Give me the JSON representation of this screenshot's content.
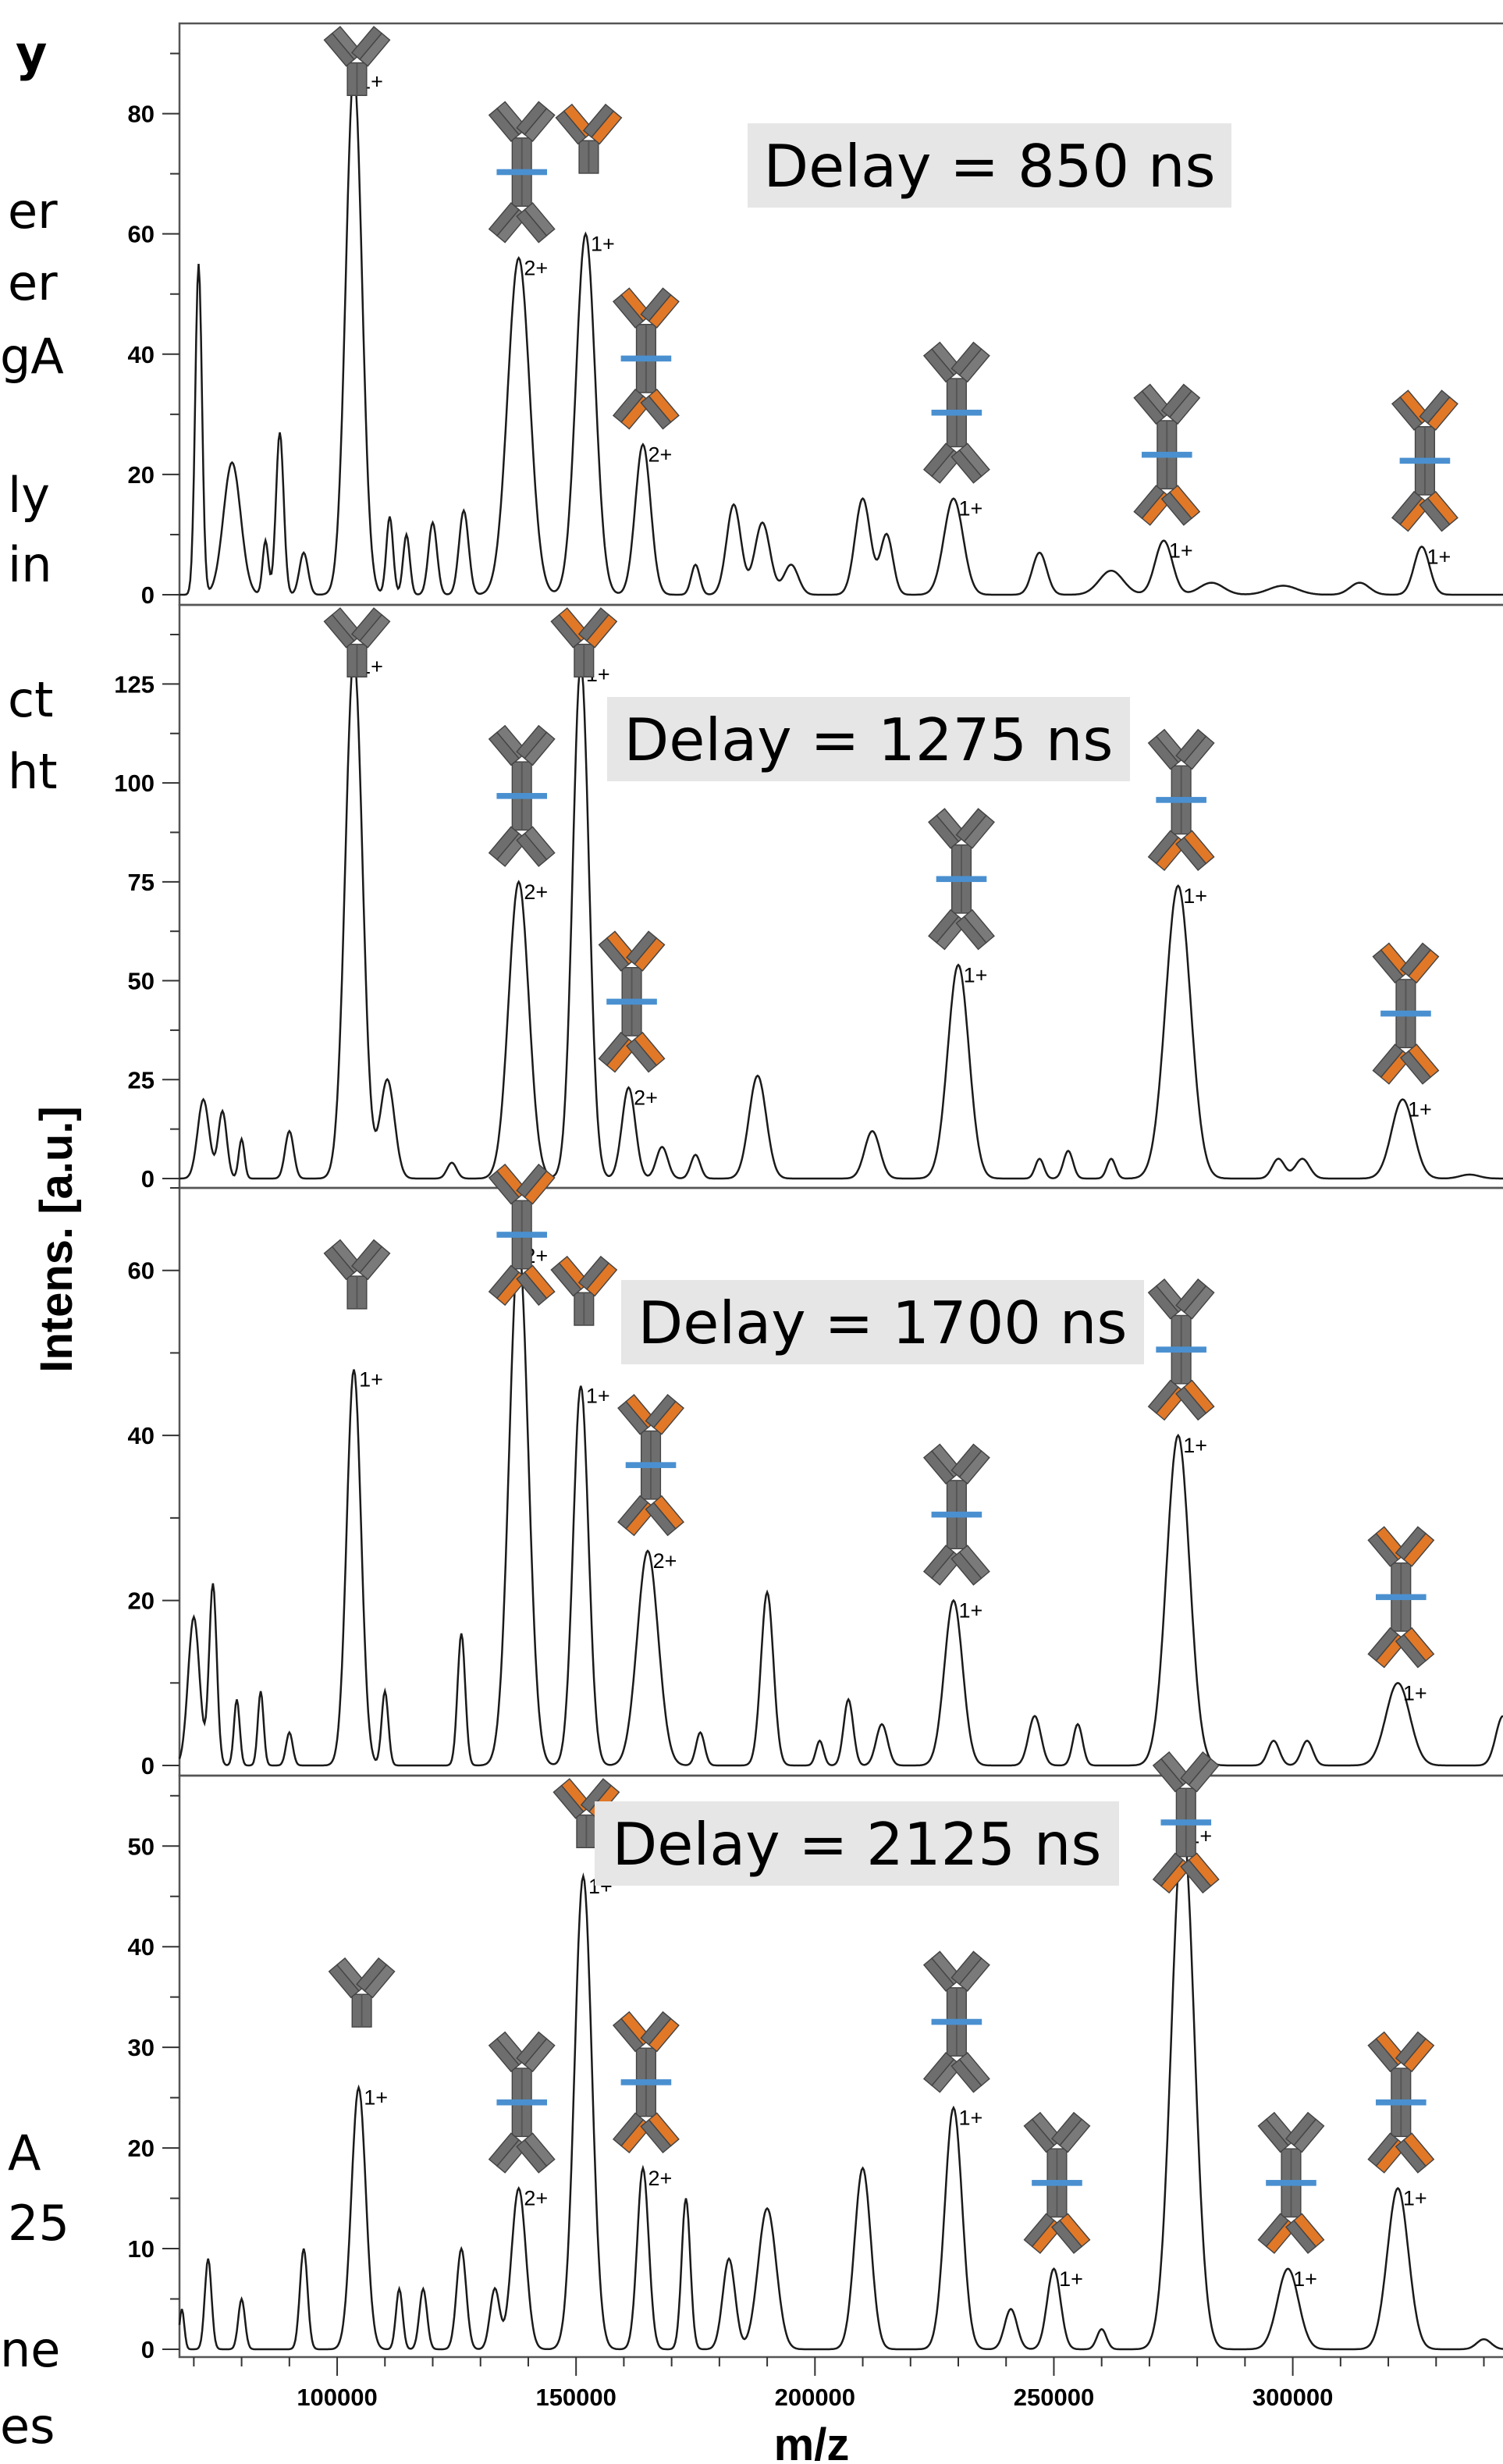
{
  "chart_data": [
    {
      "type": "line",
      "title": "Delay = 850 ns",
      "xlim": [
        67000,
        344000
      ],
      "ylim": [
        0,
        95
      ],
      "yticks": [
        0,
        20,
        40,
        60,
        80
      ],
      "peaks": [
        [
          71000,
          55,
          700
        ],
        [
          78000,
          22,
          1800
        ],
        [
          85000,
          9,
          600
        ],
        [
          88000,
          27,
          800
        ],
        [
          93000,
          7,
          900
        ],
        [
          103500,
          87,
          1700
        ],
        [
          111000,
          13,
          700
        ],
        [
          114500,
          10,
          700
        ],
        [
          120000,
          12,
          900
        ],
        [
          126500,
          14,
          1000
        ],
        [
          138000,
          56,
          2300
        ],
        [
          152000,
          60,
          2000
        ],
        [
          164000,
          25,
          1600
        ],
        [
          175000,
          5,
          900
        ],
        [
          183000,
          15,
          1500
        ],
        [
          189000,
          12,
          1600
        ],
        [
          195000,
          5,
          1500
        ],
        [
          210000,
          16,
          1600
        ],
        [
          215000,
          10,
          1300
        ],
        [
          229000,
          16,
          2000
        ],
        [
          247000,
          7,
          1500
        ],
        [
          262000,
          4,
          2500
        ],
        [
          273000,
          9,
          1800
        ],
        [
          283000,
          2,
          2500
        ],
        [
          298000,
          1.5,
          3000
        ],
        [
          314000,
          2,
          2000
        ],
        [
          327000,
          8,
          1600
        ]
      ],
      "peak_labels": [
        {
          "x": 103500,
          "y": 87,
          "charge": "1+",
          "species": "monomer"
        },
        {
          "x": 138000,
          "y": 56,
          "charge": "2+",
          "species": "dimer"
        },
        {
          "x": 152000,
          "y": 60,
          "charge": "1+",
          "species": "monomer-orange"
        },
        {
          "x": 164000,
          "y": 25,
          "charge": "2+",
          "species": "dimer-orange"
        },
        {
          "x": 229000,
          "y": 16,
          "charge": "1+",
          "species": "dimer"
        },
        {
          "x": 273000,
          "y": 9,
          "charge": "1+",
          "species": "dimer-half"
        },
        {
          "x": 327000,
          "y": 8,
          "charge": "1+",
          "species": "dimer-orange"
        }
      ]
    },
    {
      "type": "line",
      "title": "Delay = 1275 ns",
      "xlim": [
        67000,
        344000
      ],
      "ylim": [
        0,
        145
      ],
      "yticks": [
        0,
        25,
        50,
        75,
        100,
        125
      ],
      "peaks": [
        [
          72000,
          20,
          1200
        ],
        [
          76000,
          17,
          900
        ],
        [
          80000,
          10,
          600
        ],
        [
          90000,
          12,
          900
        ],
        [
          103500,
          132,
          1800
        ],
        [
          110500,
          25,
          1500
        ],
        [
          124000,
          4,
          1000
        ],
        [
          138000,
          75,
          2100
        ],
        [
          151000,
          130,
          1700
        ],
        [
          161000,
          23,
          1400
        ],
        [
          168000,
          8,
          1200
        ],
        [
          175000,
          6,
          1000
        ],
        [
          188000,
          26,
          1800
        ],
        [
          212000,
          12,
          1600
        ],
        [
          230000,
          54,
          2200
        ],
        [
          247000,
          5,
          900
        ],
        [
          253000,
          7,
          1000
        ],
        [
          262000,
          5,
          900
        ],
        [
          276000,
          74,
          2600
        ],
        [
          297000,
          5,
          1300
        ],
        [
          302000,
          5,
          1500
        ],
        [
          323000,
          20,
          2300
        ],
        [
          337000,
          1,
          2000
        ]
      ],
      "peak_labels": [
        {
          "x": 103500,
          "y": 132,
          "charge": "1+",
          "species": "monomer"
        },
        {
          "x": 138000,
          "y": 75,
          "charge": "2+",
          "species": "dimer"
        },
        {
          "x": 151000,
          "y": 130,
          "charge": "1+",
          "species": "monomer-orange"
        },
        {
          "x": 161000,
          "y": 23,
          "charge": "2+",
          "species": "dimer-orange"
        },
        {
          "x": 230000,
          "y": 54,
          "charge": "1+",
          "species": "dimer"
        },
        {
          "x": 276000,
          "y": 74,
          "charge": "1+",
          "species": "dimer-half"
        },
        {
          "x": 323000,
          "y": 20,
          "charge": "1+",
          "species": "dimer-orange"
        }
      ]
    },
    {
      "type": "line",
      "title": "Delay = 1700 ns",
      "xlim": [
        67000,
        344000
      ],
      "ylim": [
        0,
        70
      ],
      "yticks": [
        0,
        20,
        40,
        60
      ],
      "peaks": [
        [
          70000,
          18,
          1200
        ],
        [
          74000,
          22,
          800
        ],
        [
          79000,
          8,
          600
        ],
        [
          84000,
          9,
          600
        ],
        [
          90000,
          4,
          700
        ],
        [
          103500,
          48,
          1500
        ],
        [
          110000,
          9,
          700
        ],
        [
          126000,
          16,
          800
        ],
        [
          138000,
          63,
          2000
        ],
        [
          151000,
          46,
          1600
        ],
        [
          165000,
          26,
          2200
        ],
        [
          176000,
          4,
          900
        ],
        [
          190000,
          21,
          1300
        ],
        [
          201000,
          3,
          800
        ],
        [
          207000,
          8,
          1000
        ],
        [
          214000,
          5,
          1200
        ],
        [
          229000,
          20,
          1900
        ],
        [
          246000,
          6,
          1300
        ],
        [
          255000,
          5,
          1000
        ],
        [
          276000,
          40,
          2400
        ],
        [
          296000,
          3,
          1200
        ],
        [
          303000,
          3,
          1200
        ],
        [
          322000,
          10,
          2500
        ],
        [
          344000,
          6,
          1500
        ]
      ],
      "peak_labels": [
        {
          "x": 103500,
          "y": 48,
          "charge": "1+",
          "species": "monomer"
        },
        {
          "x": 138000,
          "y": 63,
          "charge": "2+",
          "species": "dimer-orange"
        },
        {
          "x": 151000,
          "y": 46,
          "charge": "1+",
          "species": "monomer-orange"
        },
        {
          "x": 165000,
          "y": 26,
          "charge": "2+",
          "species": "dimer-orange"
        },
        {
          "x": 229000,
          "y": 20,
          "charge": "1+",
          "species": "dimer"
        },
        {
          "x": 276000,
          "y": 40,
          "charge": "1+",
          "species": "dimer-half"
        },
        {
          "x": 322000,
          "y": 10,
          "charge": "1+",
          "species": "dimer-orange"
        }
      ]
    },
    {
      "type": "line",
      "title": "Delay = 2125 ns",
      "xlim": [
        67000,
        344000
      ],
      "ylim": [
        0,
        57
      ],
      "yticks": [
        0,
        10,
        20,
        30,
        40,
        50
      ],
      "peaks": [
        [
          67500,
          4,
          500
        ],
        [
          73000,
          9,
          700
        ],
        [
          80000,
          5,
          700
        ],
        [
          93000,
          10,
          800
        ],
        [
          104500,
          26,
          1500
        ],
        [
          113000,
          6,
          700
        ],
        [
          118000,
          6,
          800
        ],
        [
          126000,
          10,
          1000
        ],
        [
          133000,
          6,
          1000
        ],
        [
          138000,
          16,
          1500
        ],
        [
          151500,
          47,
          1800
        ],
        [
          164000,
          18,
          1200
        ],
        [
          173000,
          15,
          900
        ],
        [
          182000,
          9,
          1300
        ],
        [
          190000,
          14,
          1900
        ],
        [
          210000,
          18,
          1700
        ],
        [
          229000,
          24,
          1800
        ],
        [
          241000,
          4,
          1300
        ],
        [
          250000,
          8,
          1400
        ],
        [
          260000,
          2,
          1000
        ],
        [
          277000,
          52,
          2400
        ],
        [
          299000,
          8,
          2200
        ],
        [
          322000,
          16,
          2200
        ],
        [
          340000,
          1,
          1500
        ]
      ],
      "peak_labels": [
        {
          "x": 104500,
          "y": 26,
          "charge": "1+",
          "species": "monomer"
        },
        {
          "x": 138000,
          "y": 16,
          "charge": "2+",
          "species": "dimer"
        },
        {
          "x": 151500,
          "y": 47,
          "charge": "1+",
          "species": "monomer-orange"
        },
        {
          "x": 164000,
          "y": 18,
          "charge": "2+",
          "species": "dimer-orange"
        },
        {
          "x": 229000,
          "y": 24,
          "charge": "1+",
          "species": "dimer"
        },
        {
          "x": 250000,
          "y": 8,
          "charge": "1+",
          "species": "dimer-half"
        },
        {
          "x": 277000,
          "y": 52,
          "charge": "1+",
          "species": "dimer-half"
        },
        {
          "x": 299000,
          "y": 8,
          "charge": "1+",
          "species": "dimer-half"
        },
        {
          "x": 322000,
          "y": 16,
          "charge": "1+",
          "species": "dimer-orange"
        }
      ]
    }
  ],
  "xaxis": {
    "label": "m/z",
    "ticks": [
      100000,
      150000,
      200000,
      250000,
      300000
    ]
  },
  "yaxis": {
    "label": "Intens. [a.u.]"
  },
  "side_text_fragments": [
    "y",
    "er",
    "er",
    "gA",
    "ly",
    "in",
    "ct",
    "ht",
    "A",
    "25",
    "ne",
    "es"
  ],
  "colors": {
    "line": "#1a1a1a",
    "heavy": "#6e6e6e",
    "light_gray": "#7a7a7a",
    "light_orange": "#e07828",
    "link": "#4a90d0",
    "delay_box": "#e6e6e6"
  }
}
